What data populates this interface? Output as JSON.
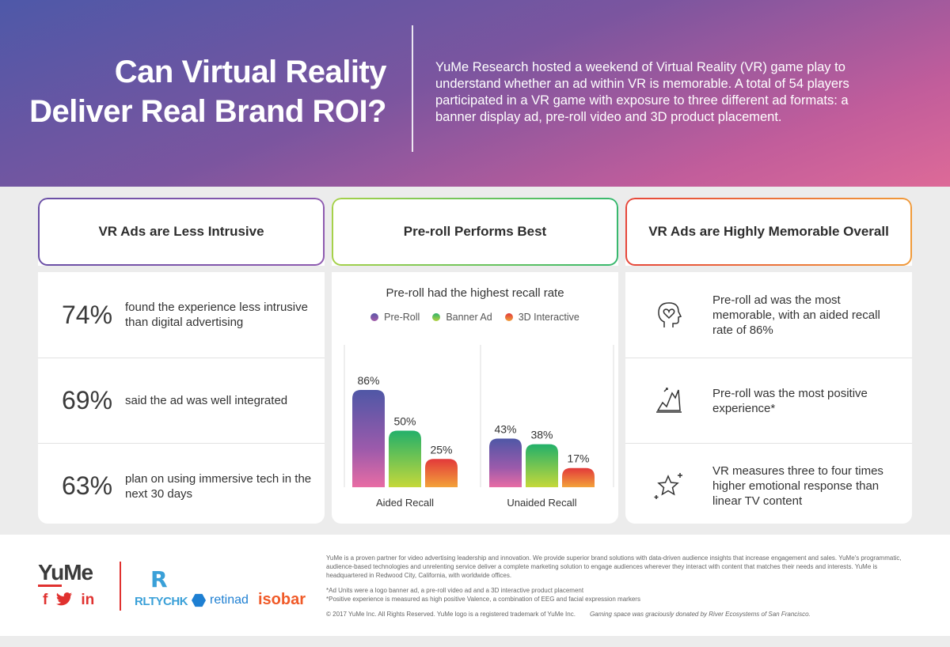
{
  "header": {
    "title_line1": "Can Virtual Reality",
    "title_line2": "Deliver Real Brand ROI?",
    "intro": "YuMe Research hosted a weekend of Virtual Reality (VR) game play to understand whether an ad within VR is memorable. A total of 54 players participated in a VR game with exposure to three different ad formats: a banner display ad, pre-roll video and 3D product placement."
  },
  "card1": {
    "title": "VR Ads are Less Intrusive",
    "stats": [
      {
        "pct": "74%",
        "desc": "found the experience less intrusive than digital advertising"
      },
      {
        "pct": "69%",
        "desc": "said the ad was well integrated"
      },
      {
        "pct": "63%",
        "desc": "plan on using immersive tech in the next 30 days"
      }
    ]
  },
  "card2": {
    "title": "Pre-roll Performs Best",
    "chart_title": "Pre-roll had the highest recall rate"
  },
  "chart_data": {
    "type": "bar",
    "title": "Pre-roll had the highest recall rate",
    "categories": [
      "Aided Recall",
      "Unaided Recall"
    ],
    "series": [
      {
        "name": "Pre-Roll",
        "values": [
          86,
          43
        ],
        "labels": [
          "86%",
          "43%"
        ],
        "color": "#7b4fa8"
      },
      {
        "name": "Banner Ad",
        "values": [
          50,
          38
        ],
        "labels": [
          "50%",
          "38%"
        ],
        "color": "#3bb86a"
      },
      {
        "name": "3D Interactive",
        "values": [
          25,
          17
        ],
        "labels": [
          "25%",
          "17%"
        ],
        "color": "#e8543a"
      }
    ],
    "ylim": [
      0,
      100
    ],
    "legend": "top"
  },
  "card3": {
    "title": "VR Ads are Highly Memorable Overall",
    "items": [
      {
        "icon": "head-heart-icon",
        "text": "Pre-roll ad was the most memorable, with an aided recall rate of 86%"
      },
      {
        "icon": "positive-graph-icon",
        "text": "Pre-roll was the most positive experience*"
      },
      {
        "icon": "star-sparkle-icon",
        "text": "VR measures three to four times higher emotional response than linear TV content"
      }
    ]
  },
  "footer": {
    "logo": "YuMe",
    "social": [
      "f",
      "in"
    ],
    "partners": {
      "rltychk_r": "R",
      "rltychk": "RLTYCHK",
      "retinad": "retinad",
      "isobar": "isobar"
    },
    "about": "YuMe is a proven partner for video advertising leadership and innovation. We provide superior brand solutions with data-driven audience insights that increase engagement and sales. YuMe's programmatic, audience-based technologies and unrelenting service deliver a complete marketing solution to engage audiences wherever they interact with content that matches their needs and interests. YuMe is headquartered in Redwood City, California, with worldwide offices.",
    "note1": "*Ad Units were a logo banner ad, a pre-roll video ad and a 3D interactive product placement",
    "note2": "*Positive experience is measured as high positive Valence, a combination of EEG and facial expression markers",
    "copyright": "© 2017 YuMe Inc. All Rights Reserved. YuMe logo is a registered trademark of YuMe Inc.",
    "credit": "Gaming space was graciously donated by River Ecosystems of San Francisco."
  },
  "colors": {
    "accent_red": "#e0312f",
    "preroll": "#7b4fa8",
    "banner": "#3bb86a",
    "interactive": "#e8543a"
  }
}
